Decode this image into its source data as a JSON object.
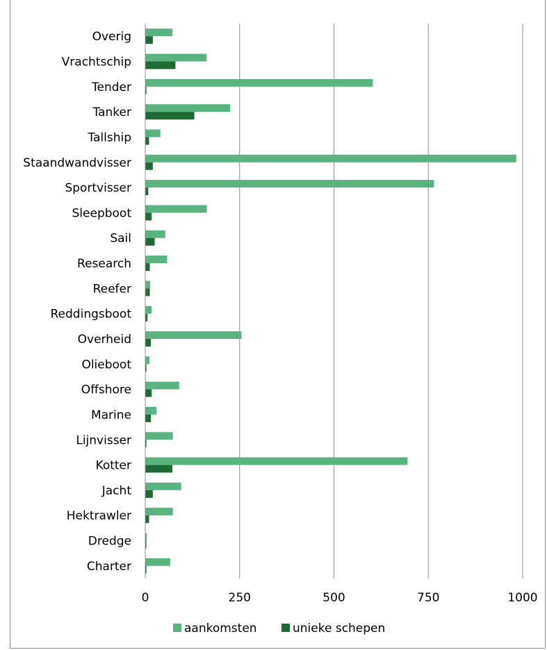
{
  "chart_data": {
    "type": "bar",
    "orientation": "horizontal",
    "title": "",
    "xlabel": "",
    "ylabel": "",
    "xlim": [
      0,
      1000
    ],
    "xticks": [
      "0",
      "250",
      "500",
      "750",
      "1000"
    ],
    "grid": true,
    "legend_position": "bottom",
    "categories": [
      "Overig",
      "Vrachtschip",
      "Tender",
      "Tanker",
      "Tallship",
      "Staandwandvisser",
      "Sportvisser",
      "Sleepboot",
      "Sail",
      "Research",
      "Reefer",
      "Reddingsboot",
      "Overheid",
      "Olieboot",
      "Offshore",
      "Marine",
      "Lijnvisser",
      "Kotter",
      "Jacht",
      "Hektrawler",
      "Dredge",
      "Charter"
    ],
    "series": [
      {
        "name": "aankomsten",
        "color": "#5ab47f",
        "values": [
          72,
          162,
          603,
          225,
          40,
          983,
          765,
          163,
          53,
          58,
          13,
          17,
          255,
          11,
          90,
          30,
          73,
          695,
          95,
          73,
          4,
          66
        ]
      },
      {
        "name": "unieke schepen",
        "color": "#1e6b36",
        "values": [
          20,
          80,
          3,
          130,
          10,
          20,
          8,
          17,
          25,
          12,
          12,
          6,
          15,
          3,
          17,
          15,
          3,
          72,
          20,
          10,
          2,
          3
        ]
      }
    ]
  }
}
